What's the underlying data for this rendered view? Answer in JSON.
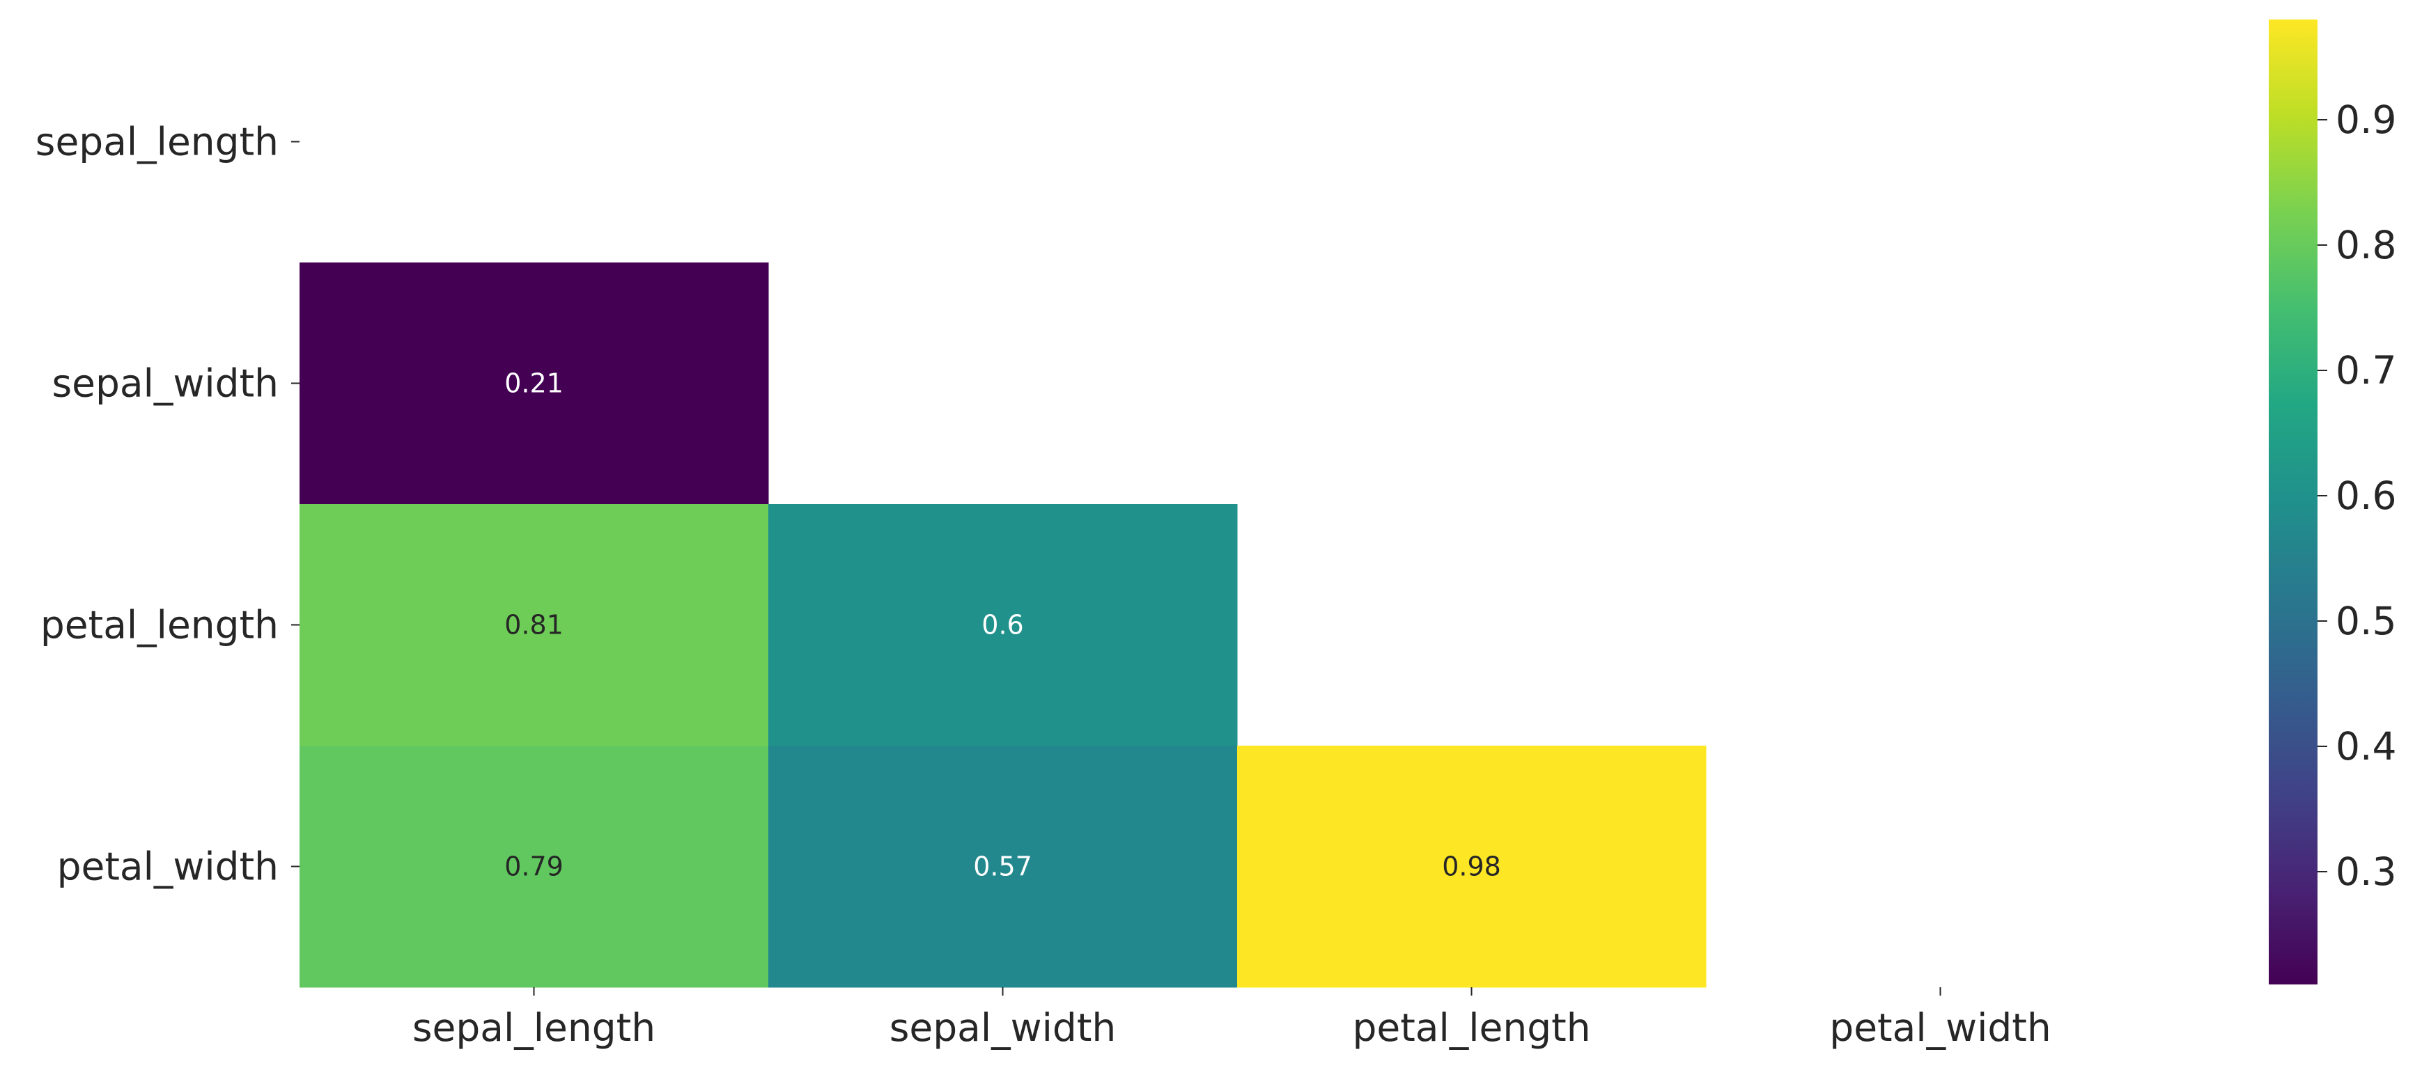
{
  "chart_data": {
    "type": "heatmap",
    "title": "",
    "xlabel": "",
    "ylabel": "",
    "rows": [
      "sepal_length",
      "sepal_width",
      "petal_length",
      "petal_width"
    ],
    "columns": [
      "sepal_length",
      "sepal_width",
      "petal_length",
      "petal_width"
    ],
    "mask": "upper triangle including diagonal (cells not shown)",
    "cells": [
      {
        "row": "sepal_width",
        "col": "sepal_length",
        "value": 0.21,
        "label": "0.21"
      },
      {
        "row": "petal_length",
        "col": "sepal_length",
        "value": 0.81,
        "label": "0.81"
      },
      {
        "row": "petal_length",
        "col": "sepal_width",
        "value": 0.6,
        "label": "0.6"
      },
      {
        "row": "petal_width",
        "col": "sepal_length",
        "value": 0.79,
        "label": "0.79"
      },
      {
        "row": "petal_width",
        "col": "sepal_width",
        "value": 0.57,
        "label": "0.57"
      },
      {
        "row": "petal_width",
        "col": "petal_length",
        "value": 0.98,
        "label": "0.98"
      }
    ],
    "colorbar": {
      "colormap": "viridis",
      "range": [
        0.21,
        0.98
      ],
      "ticks": [
        0.3,
        0.4,
        0.5,
        0.6,
        0.7,
        0.8,
        0.9
      ],
      "tick_labels": [
        "0.3",
        "0.4",
        "0.5",
        "0.6",
        "0.7",
        "0.8",
        "0.9"
      ]
    },
    "legend": "colorbar on the right"
  }
}
